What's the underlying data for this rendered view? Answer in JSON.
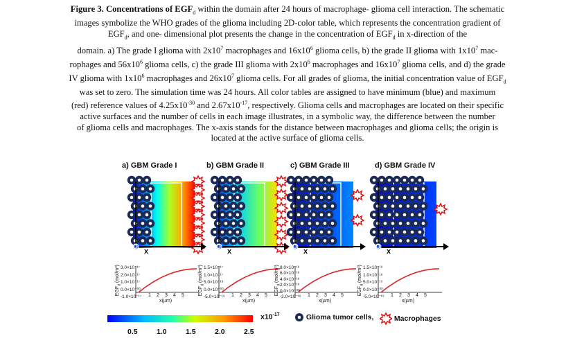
{
  "caption": {
    "line1": "Figure 3. Concentrations of EGF",
    "line1_sub": "d",
    "line1_rest": " within the domain after 24 hours of macrophage- glioma cell interaction. The schematic",
    "line2": "images symbolize the WHO grades of the glioma including 2D-color table, which represents the concentration gradient of",
    "line3a": "EGF",
    "line3_sub": "d",
    "line3b": ", and one- dimensional plot presents the change in the concentration of EGF",
    "line3_sub2": "d",
    "line3c": " in x-direction of the",
    "line4a": "domain. a) The grade I glioma with 2x10",
    "sup7a": "7",
    "line4b": " macrophages and 16x10",
    "sup6a": "6",
    "line4c": " glioma cells, b) the grade II glioma with 1x10",
    "sup7b": "7",
    "line4d": " mac-",
    "line5a": "rophages and 56x10",
    "sup6b": "6",
    "line5b": " glioma cells, c) the grade III glioma with 2x10",
    "sup6c": "6",
    "line5c": " macrophages and 16x10",
    "sup7c": "7",
    "line5d": " glioma cells, and d) the grade",
    "line6a": "IV glioma with 1x10",
    "sup6d": "6",
    "line6b": " macrophages and 26x10",
    "sup7d": "7",
    "line6c": " glioma cells. For all grades of glioma, the initial concentration value of EGF",
    "line6_sub": "d",
    "line7": "was set to zero. The simulation time was 24 hours. All color tables are assigned to have minimum (blue) and maximum",
    "line8a": "(red) reference values of 4.25x10",
    "sup30": "-30",
    "line8b": " and 2.67x10",
    "sup17": "-17",
    "line8c": ", respectively. Glioma cells and macrophages are located on their specific",
    "line9": "active surfaces and the number of cells in each image illustrates, in a symbolic way, the difference between the number",
    "line10": "of glioma cells and macrophages. The x-axis stands for the distance between macrophages and glioma cells; the origin is",
    "line11": "located at the active surface of glioma cells."
  },
  "panels": [
    {
      "title": "a) GBM Grade I",
      "ylabels": [
        "3.0×10⁻¹⁷",
        "2.0×10⁻¹⁷",
        "1.0×10⁻¹⁷",
        "0.0×10⁺⁰⁰",
        "-1.0×10⁻¹⁷"
      ]
    },
    {
      "title": "b) GBM Grade II",
      "ylabels": [
        "1.5×10⁻¹⁷",
        "1.0×10⁻¹⁷",
        "5.0×10⁻¹⁸",
        "0.0×10⁺⁰⁰",
        "-5.0×10⁻¹⁸"
      ]
    },
    {
      "title": "c) GBM Grade III",
      "ylabels": [
        "8.0×10⁻¹⁸",
        "6.0×10⁻¹⁸",
        "4.0×10⁻¹⁸",
        "2.0×10⁻¹⁸",
        "0.0×10⁺⁰⁰",
        "-2.0×10⁻¹⁸"
      ]
    },
    {
      "title": "d) GBM Grade IV",
      "ylabels": [
        "1.5×10⁻¹⁸",
        "1.0×10⁻¹⁸",
        "5.0×10⁻¹⁹",
        "0.0×10⁺⁰⁰",
        "-5.0×10⁻¹⁹"
      ]
    }
  ],
  "axis": {
    "ylabel": "EGF",
    "ylabel_sub": "d",
    "ylabel_unit": " (mol/m³)",
    "xlabel": "x(µm)",
    "xticks": [
      "1",
      "2",
      "3",
      "4",
      "5"
    ],
    "axis_x": "x",
    "axis_o": "O"
  },
  "colorbar": {
    "ticks": [
      "0.5",
      "1.0",
      "1.5",
      "2.0",
      "2.5"
    ],
    "scale": "x10",
    "scale_exp": "-17",
    "colors": [
      "#0000ff",
      "#00aaff",
      "#00ffaa",
      "#aaff00",
      "#ffaa00",
      "#ff0000"
    ]
  },
  "legend": {
    "glioma": "Glioma tumor cells,",
    "macrophage": "Macrophages"
  }
}
